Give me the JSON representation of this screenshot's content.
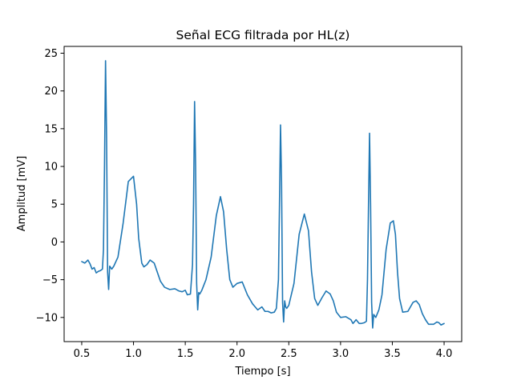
{
  "chart_data": {
    "type": "line",
    "title": "Señal ECG filtrada por HL(z)",
    "xlabel": "Tiempo [s]",
    "ylabel": "Amplitud [mV]",
    "xlim": [
      0.33,
      4.17
    ],
    "ylim": [
      -13.2,
      25.9
    ],
    "xticks": [
      0.5,
      1.0,
      1.5,
      2.0,
      2.5,
      3.0,
      3.5,
      4.0
    ],
    "xtick_labels": [
      "0.5",
      "1.0",
      "1.5",
      "2.0",
      "2.5",
      "3.0",
      "3.5",
      "4.0"
    ],
    "yticks": [
      -10,
      -5,
      0,
      5,
      10,
      15,
      20,
      25
    ],
    "ytick_labels": [
      "−10",
      "−5",
      "0",
      "5",
      "10",
      "15",
      "20",
      "25"
    ],
    "grid": false,
    "series": [
      {
        "color": "#1f77b4",
        "x": [
          0.5,
          0.53,
          0.56,
          0.58,
          0.6,
          0.62,
          0.64,
          0.66,
          0.68,
          0.7,
          0.71,
          0.72,
          0.73,
          0.74,
          0.75,
          0.76,
          0.77,
          0.78,
          0.79,
          0.81,
          0.85,
          0.9,
          0.95,
          1.0,
          1.03,
          1.05,
          1.08,
          1.1,
          1.13,
          1.16,
          1.2,
          1.23,
          1.26,
          1.3,
          1.35,
          1.4,
          1.44,
          1.47,
          1.5,
          1.52,
          1.55,
          1.57,
          1.58,
          1.59,
          1.6,
          1.61,
          1.62,
          1.63,
          1.64,
          1.66,
          1.7,
          1.75,
          1.8,
          1.84,
          1.87,
          1.9,
          1.93,
          1.96,
          2.0,
          2.05,
          2.1,
          2.15,
          2.2,
          2.24,
          2.27,
          2.3,
          2.33,
          2.36,
          2.38,
          2.4,
          2.41,
          2.42,
          2.43,
          2.44,
          2.45,
          2.46,
          2.47,
          2.48,
          2.5,
          2.55,
          2.6,
          2.65,
          2.69,
          2.72,
          2.75,
          2.78,
          2.82,
          2.86,
          2.9,
          2.93,
          2.96,
          3.0,
          3.05,
          3.1,
          3.12,
          3.15,
          3.18,
          3.2,
          3.23,
          3.25,
          3.26,
          3.27,
          3.28,
          3.29,
          3.3,
          3.31,
          3.32,
          3.34,
          3.37,
          3.4,
          3.44,
          3.48,
          3.51,
          3.53,
          3.55,
          3.57,
          3.6,
          3.65,
          3.7,
          3.73,
          3.76,
          3.79,
          3.82,
          3.85,
          3.88,
          3.9,
          3.93,
          3.95,
          3.97,
          4.0
        ],
        "y": [
          -2.6,
          -2.8,
          -2.4,
          -2.9,
          -3.6,
          -3.4,
          -4.1,
          -3.9,
          -3.8,
          -3.6,
          -1.0,
          10.0,
          24.0,
          14.0,
          -4.0,
          -6.3,
          -3.2,
          -3.4,
          -3.6,
          -3.2,
          -2.0,
          2.5,
          8.0,
          8.7,
          5.0,
          0.5,
          -2.8,
          -3.3,
          -3.0,
          -2.4,
          -2.8,
          -4.0,
          -5.2,
          -6.0,
          -6.3,
          -6.2,
          -6.5,
          -6.6,
          -6.4,
          -7.0,
          -6.9,
          -3.0,
          5.0,
          18.6,
          10.0,
          -5.5,
          -9.0,
          -6.7,
          -6.9,
          -6.4,
          -5.0,
          -2.0,
          3.5,
          6.0,
          4.0,
          -1.0,
          -5.0,
          -6.0,
          -5.5,
          -5.3,
          -7.0,
          -8.2,
          -9.0,
          -8.6,
          -9.2,
          -9.2,
          -9.4,
          -9.3,
          -8.8,
          -5.0,
          5.0,
          15.5,
          8.0,
          -8.0,
          -10.6,
          -7.8,
          -8.6,
          -8.8,
          -8.4,
          -5.5,
          1.0,
          3.7,
          1.5,
          -4.0,
          -7.5,
          -8.4,
          -7.4,
          -6.5,
          -6.9,
          -7.8,
          -9.3,
          -10.0,
          -9.9,
          -10.3,
          -10.8,
          -10.3,
          -10.8,
          -10.8,
          -10.7,
          -10.5,
          -5.0,
          5.0,
          14.4,
          5.0,
          -8.0,
          -11.4,
          -9.6,
          -10.0,
          -9.0,
          -7.0,
          -1.0,
          2.5,
          2.8,
          1.0,
          -4.0,
          -7.5,
          -9.3,
          -9.2,
          -8.0,
          -7.8,
          -8.3,
          -9.5,
          -10.3,
          -10.9,
          -10.9,
          -10.9,
          -10.6,
          -10.7,
          -11.0,
          -10.8
        ]
      }
    ]
  }
}
